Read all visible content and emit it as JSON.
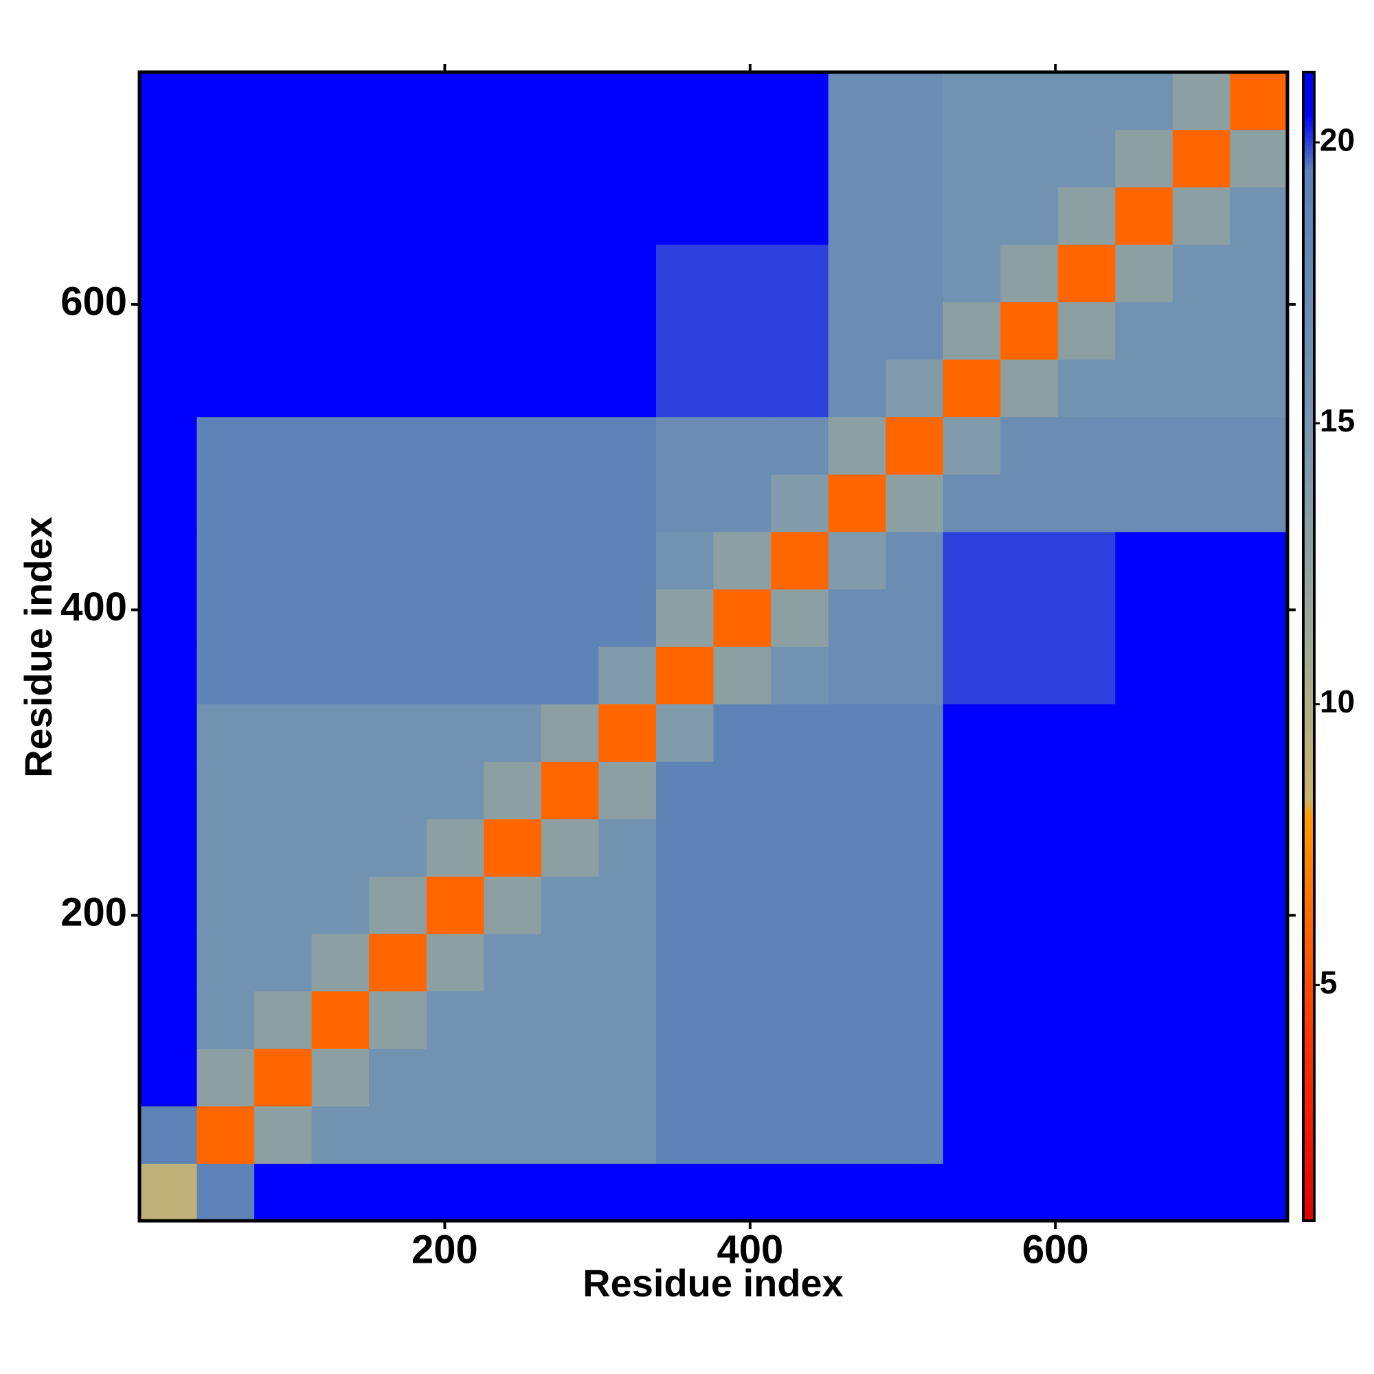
{
  "chart_data": {
    "type": "heatmap",
    "xlabel": "Residue index",
    "ylabel": "Residue index",
    "xlim": [
      0,
      752
    ],
    "ylim": [
      0,
      752
    ],
    "xticks": [
      200,
      400,
      600
    ],
    "yticks": [
      200,
      400,
      600
    ],
    "z": [
      [
        9,
        19,
        21,
        21,
        21,
        21,
        21,
        21,
        21,
        21,
        21,
        21,
        21,
        21,
        21,
        21,
        21,
        21,
        21,
        21
      ],
      [
        19,
        6,
        13,
        16,
        16,
        16,
        16,
        16,
        16,
        19,
        19,
        19,
        19,
        19,
        21,
        21,
        21,
        21,
        21,
        21
      ],
      [
        21,
        13,
        6,
        13,
        16,
        16,
        16,
        16,
        16,
        19,
        19,
        19,
        19,
        19,
        21,
        21,
        21,
        21,
        21,
        21
      ],
      [
        21,
        16,
        13,
        6,
        13,
        16,
        16,
        16,
        16,
        19,
        19,
        19,
        19,
        19,
        21,
        21,
        21,
        21,
        21,
        21
      ],
      [
        21,
        16,
        16,
        13,
        6,
        13,
        16,
        16,
        16,
        19,
        19,
        19,
        19,
        19,
        21,
        21,
        21,
        21,
        21,
        21
      ],
      [
        21,
        16,
        16,
        16,
        13,
        6,
        13,
        16,
        16,
        19,
        19,
        19,
        19,
        19,
        21,
        21,
        21,
        21,
        21,
        21
      ],
      [
        21,
        16,
        16,
        16,
        16,
        13,
        6,
        13,
        16,
        19,
        19,
        19,
        19,
        19,
        21,
        21,
        21,
        21,
        21,
        21
      ],
      [
        21,
        16,
        16,
        16,
        16,
        16,
        13,
        6,
        13,
        19,
        19,
        19,
        19,
        19,
        21,
        21,
        21,
        21,
        21,
        21
      ],
      [
        21,
        16,
        16,
        16,
        16,
        16,
        16,
        13,
        6,
        14,
        19,
        19,
        19,
        19,
        21,
        21,
        21,
        21,
        21,
        21
      ],
      [
        21,
        19,
        19,
        19,
        19,
        19,
        19,
        19,
        14,
        6,
        13,
        16,
        17,
        17,
        20,
        20,
        20,
        21,
        21,
        21
      ],
      [
        21,
        19,
        19,
        19,
        19,
        19,
        19,
        19,
        19,
        13,
        6,
        13,
        17,
        17,
        20,
        20,
        20,
        21,
        21,
        21
      ],
      [
        21,
        19,
        19,
        19,
        19,
        19,
        19,
        19,
        19,
        16,
        13,
        6,
        14,
        17,
        20,
        20,
        20,
        21,
        21,
        21
      ],
      [
        21,
        19,
        19,
        19,
        19,
        19,
        19,
        19,
        19,
        17,
        17,
        14,
        6,
        13,
        17,
        17,
        17,
        17,
        17,
        17
      ],
      [
        21,
        19,
        19,
        19,
        19,
        19,
        19,
        19,
        19,
        17,
        17,
        17,
        13,
        6,
        14,
        17,
        17,
        17,
        17,
        17
      ],
      [
        21,
        21,
        21,
        21,
        21,
        21,
        21,
        21,
        21,
        20,
        20,
        20,
        17,
        14,
        6,
        13,
        16,
        16,
        16,
        16
      ],
      [
        21,
        21,
        21,
        21,
        21,
        21,
        21,
        21,
        21,
        20,
        20,
        20,
        17,
        17,
        13,
        6,
        13,
        16,
        16,
        16
      ],
      [
        21,
        21,
        21,
        21,
        21,
        21,
        21,
        21,
        21,
        20,
        20,
        20,
        17,
        17,
        16,
        13,
        6,
        13,
        16,
        16
      ],
      [
        21,
        21,
        21,
        21,
        21,
        21,
        21,
        21,
        21,
        21,
        21,
        21,
        17,
        17,
        16,
        16,
        13,
        6,
        13,
        16
      ],
      [
        21,
        21,
        21,
        21,
        21,
        21,
        21,
        21,
        21,
        21,
        21,
        21,
        17,
        17,
        16,
        16,
        16,
        13,
        6,
        13
      ],
      [
        21,
        21,
        21,
        21,
        21,
        21,
        21,
        21,
        21,
        21,
        21,
        21,
        17,
        17,
        16,
        16,
        16,
        16,
        13,
        6
      ]
    ],
    "colorscale": [
      {
        "value": 0.8,
        "color": "#e00000"
      },
      {
        "value": 4,
        "color": "#ff3300"
      },
      {
        "value": 8,
        "color": "#ff9900"
      },
      {
        "value": 8.3,
        "color": "#c8b46e"
      },
      {
        "value": 11,
        "color": "#a0aa96"
      },
      {
        "value": 15,
        "color": "#7896b0"
      },
      {
        "value": 19.5,
        "color": "#5b82b8"
      },
      {
        "value": 20.5,
        "color": "#0000ff"
      },
      {
        "value": 21.25,
        "color": "#0000ff"
      }
    ],
    "colorbar": {
      "lim": [
        0.8,
        21.25
      ],
      "ticks": [
        5,
        10,
        15,
        20
      ]
    }
  }
}
